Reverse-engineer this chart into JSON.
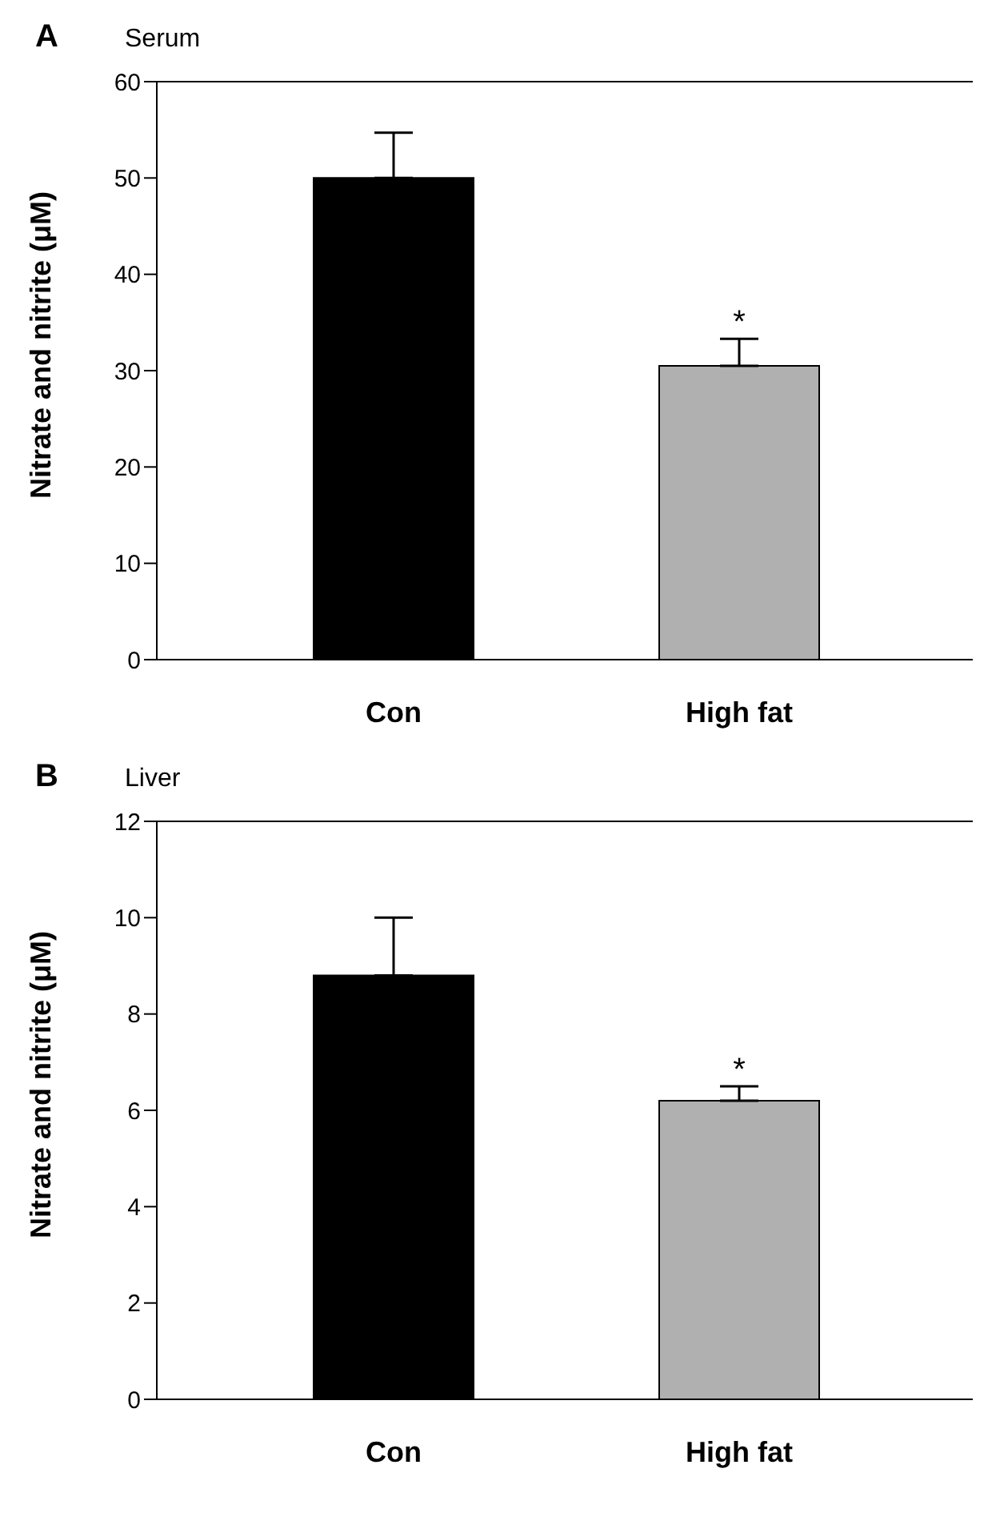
{
  "chart_data": [
    {
      "type": "bar",
      "title": "Serum",
      "ylabel": "Nitrate and nitrite (μM)",
      "categories": [
        "Con",
        "High fat"
      ],
      "values": [
        50.0,
        30.5
      ],
      "colors": [
        "#000000",
        "#b0b0b0"
      ],
      "errors": [
        4.7,
        2.8
      ],
      "ylim": [
        0,
        60
      ],
      "yticks": [
        0,
        10,
        20,
        30,
        40,
        50,
        60
      ],
      "annotations": [
        "A",
        {
          "text": "*",
          "x": "High fat",
          "y": 33.3
        }
      ]
    },
    {
      "type": "bar",
      "title": "Liver",
      "ylabel": "Nitrate and nitrite (μM)",
      "categories": [
        "Con",
        "High fat"
      ],
      "values": [
        8.8,
        6.2
      ],
      "colors": [
        "#000000",
        "#b0b0b0"
      ],
      "errors": [
        1.2,
        0.3
      ],
      "ylim": [
        0,
        12
      ],
      "yticks": [
        0,
        2,
        4,
        6,
        8,
        10,
        12
      ],
      "annotations": [
        "B",
        {
          "text": "*",
          "x": "High fat",
          "y": 6.5
        }
      ]
    }
  ]
}
